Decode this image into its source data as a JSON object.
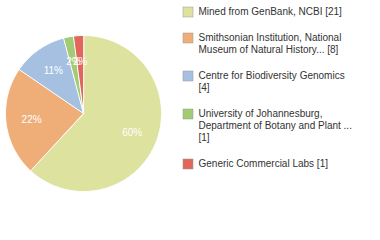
{
  "chart_data": {
    "type": "pie",
    "categories": [
      "Mined from GenBank, NCBI [21]",
      "Smithsonian Institution, National Museum of Natural History... [8]",
      "Centre for Biodiversity Genomics [4]",
      "University of Johannesburg, Department of Botany and Plant ... [1]",
      "Generic Commercial Labs [1]"
    ],
    "values": [
      60,
      22,
      11,
      2,
      2
    ],
    "value_labels": [
      "60%",
      "22%",
      "11%",
      "2%",
      "2%"
    ],
    "colors": [
      "#dde29e",
      "#efae78",
      "#a5c0e1",
      "#a2cc73",
      "#e0675a"
    ],
    "data_labels": true,
    "legend": "right"
  }
}
